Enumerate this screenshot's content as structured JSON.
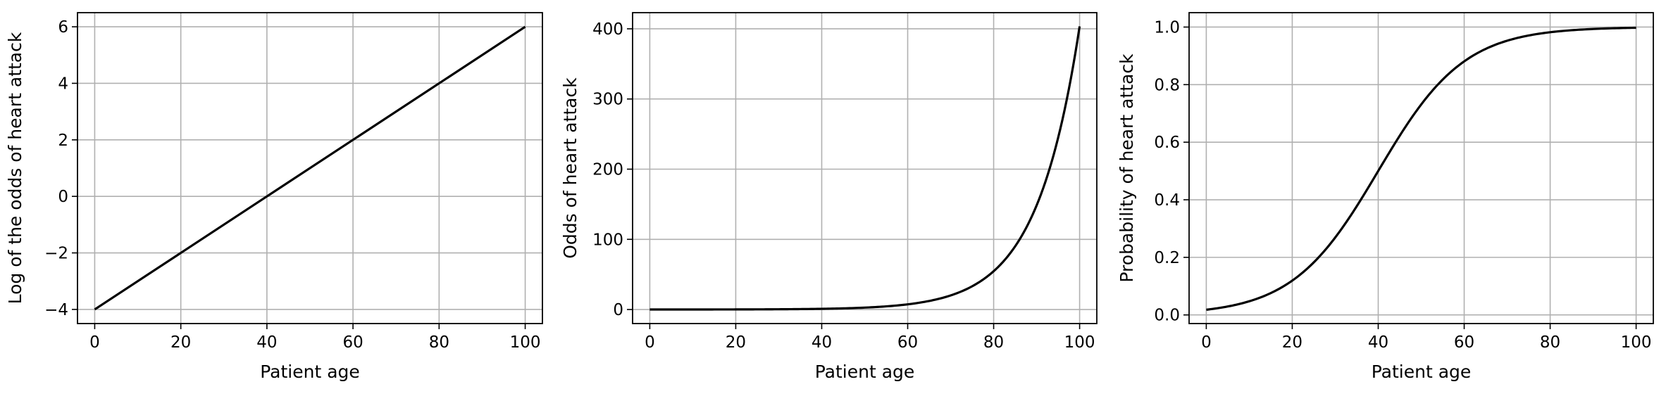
{
  "chart_data": [
    {
      "type": "line",
      "xlabel": "Patient age",
      "ylabel": "Log of the odds of heart attack",
      "xlim": [
        -4,
        104
      ],
      "ylim": [
        -4.5,
        6.5
      ],
      "xticks": [
        0,
        20,
        40,
        60,
        80,
        100
      ],
      "yticks": [
        -4,
        -2,
        0,
        2,
        4,
        6
      ],
      "ytick_labels": [
        "−4",
        "−2",
        "0",
        "2",
        "4",
        "6"
      ],
      "xtick_labels": [
        "0",
        "20",
        "40",
        "60",
        "80",
        "100"
      ],
      "grid": true,
      "line_color": "#000000",
      "series": [
        {
          "x": [
            0,
            20,
            40,
            60,
            80,
            100
          ],
          "y": [
            -4,
            -2,
            0,
            2,
            4,
            6
          ]
        }
      ]
    },
    {
      "type": "line",
      "xlabel": "Patient age",
      "ylabel": "Odds of heart attack",
      "xlim": [
        -4,
        104
      ],
      "ylim": [
        -20,
        423
      ],
      "xticks": [
        0,
        20,
        40,
        60,
        80,
        100
      ],
      "yticks": [
        0,
        100,
        200,
        300,
        400
      ],
      "ytick_labels": [
        "0",
        "100",
        "200",
        "300",
        "400"
      ],
      "xtick_labels": [
        "0",
        "20",
        "40",
        "60",
        "80",
        "100"
      ],
      "grid": true,
      "line_color": "#000000",
      "series": [
        {
          "x": [
            0,
            10,
            20,
            30,
            40,
            50,
            55,
            60,
            65,
            70,
            75,
            80,
            85,
            90,
            95,
            100
          ],
          "y": [
            0.02,
            0.05,
            0.14,
            0.37,
            1.0,
            2.72,
            4.48,
            7.39,
            12.18,
            20.09,
            33.12,
            54.6,
            90.02,
            148.41,
            244.69,
            403.43
          ]
        }
      ]
    },
    {
      "type": "line",
      "xlabel": "Patient age",
      "ylabel": "Probability of heart attack",
      "xlim": [
        -4,
        104
      ],
      "ylim": [
        -0.03,
        1.05
      ],
      "xticks": [
        0,
        20,
        40,
        60,
        80,
        100
      ],
      "yticks": [
        0.0,
        0.2,
        0.4,
        0.6,
        0.8,
        1.0
      ],
      "ytick_labels": [
        "0.0",
        "0.2",
        "0.4",
        "0.6",
        "0.8",
        "1.0"
      ],
      "xtick_labels": [
        "0",
        "20",
        "40",
        "60",
        "80",
        "100"
      ],
      "grid": true,
      "line_color": "#000000",
      "series": [
        {
          "x": [
            0,
            5,
            10,
            15,
            20,
            25,
            30,
            35,
            40,
            45,
            50,
            55,
            60,
            65,
            70,
            75,
            80,
            85,
            90,
            95,
            100
          ],
          "y": [
            0.018,
            0.029,
            0.047,
            0.076,
            0.119,
            0.182,
            0.269,
            0.378,
            0.5,
            0.622,
            0.731,
            0.818,
            0.881,
            0.924,
            0.953,
            0.971,
            0.982,
            0.989,
            0.993,
            0.996,
            0.998
          ]
        }
      ]
    }
  ]
}
